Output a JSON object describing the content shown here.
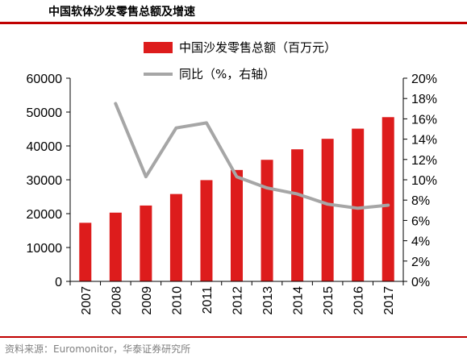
{
  "title": "中国软体沙发零售总额及增速",
  "source": "资料来源：Euromonitor，华泰证券研究所",
  "colors": {
    "bar": "#dd1c1c",
    "line": "#a6a6a6",
    "accent_rule": "#c00000",
    "axis": "#000000"
  },
  "chart_data": {
    "type": "bar",
    "categories": [
      "2007",
      "2008",
      "2009",
      "2010",
      "2011",
      "2012",
      "2013",
      "2014",
      "2015",
      "2016",
      "2017"
    ],
    "series": [
      {
        "name": "中国沙发零售总额（百万元）",
        "type": "bar",
        "axis": "left",
        "values": [
          17300,
          20300,
          22400,
          25800,
          29900,
          32900,
          35900,
          39000,
          42100,
          45100,
          48500
        ]
      },
      {
        "name": "同比（%，右轴）",
        "type": "line",
        "axis": "right",
        "values": [
          null,
          17.5,
          10.3,
          15.1,
          15.6,
          10.3,
          9.2,
          8.6,
          7.6,
          7.2,
          7.5
        ]
      }
    ],
    "left_axis": {
      "min": 0,
      "max": 60000,
      "ticks": [
        "0",
        "10000",
        "20000",
        "30000",
        "40000",
        "50000",
        "60000"
      ]
    },
    "right_axis": {
      "min": 0,
      "max": 20,
      "ticks": [
        "0%",
        "2%",
        "4%",
        "6%",
        "8%",
        "10%",
        "12%",
        "14%",
        "16%",
        "18%",
        "20%"
      ]
    },
    "legend_position": "top-center"
  }
}
